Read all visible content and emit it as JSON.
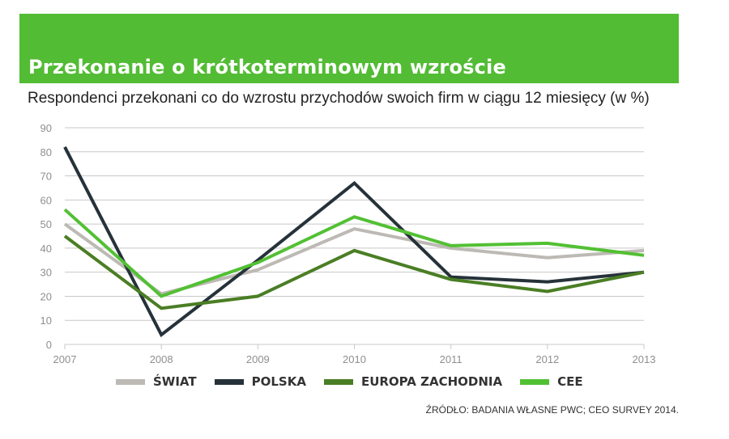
{
  "header": {
    "title": "Przekonanie o krótkoterminowym wzroście",
    "subtitle": "Respondenci przekonani co do wzrostu przychodów swoich firm w ciągu 12 miesięcy (w %)"
  },
  "source": "ŹRÓDŁO: BADANIA WŁASNE PWC; CEO SURVEY 2014.",
  "colors": {
    "banner": "#52bc34",
    "grid": "#c8c8c8",
    "axis_text": "#8f8f8f"
  },
  "chart_data": {
    "type": "line",
    "title": "Przekonanie o krótkoterminowym wzroście",
    "subtitle": "Respondenci przekonani co do wzrostu przychodów swoich firm w ciągu 12 miesięcy (w %)",
    "x": [
      "2007",
      "2008",
      "2009",
      "2010",
      "2011",
      "2012",
      "2013"
    ],
    "ylim": [
      0,
      90
    ],
    "yticks": [
      0,
      10,
      20,
      30,
      40,
      50,
      60,
      70,
      80,
      90
    ],
    "grid": true,
    "legend_position": "bottom",
    "series": [
      {
        "name": "ŚWIAT",
        "color": "#bdb9b4",
        "values": [
          50,
          21,
          31,
          48,
          40,
          36,
          39
        ]
      },
      {
        "name": "POLSKA",
        "color": "#26323a",
        "values": [
          82,
          4,
          35,
          67,
          28,
          26,
          30
        ]
      },
      {
        "name": "EUROPA ZACHODNIA",
        "color": "#4a7e24",
        "values": [
          45,
          15,
          20,
          39,
          27,
          22,
          30
        ]
      },
      {
        "name": "CEE",
        "color": "#52c033",
        "values": [
          56,
          20,
          34,
          53,
          41,
          42,
          37
        ]
      }
    ]
  }
}
